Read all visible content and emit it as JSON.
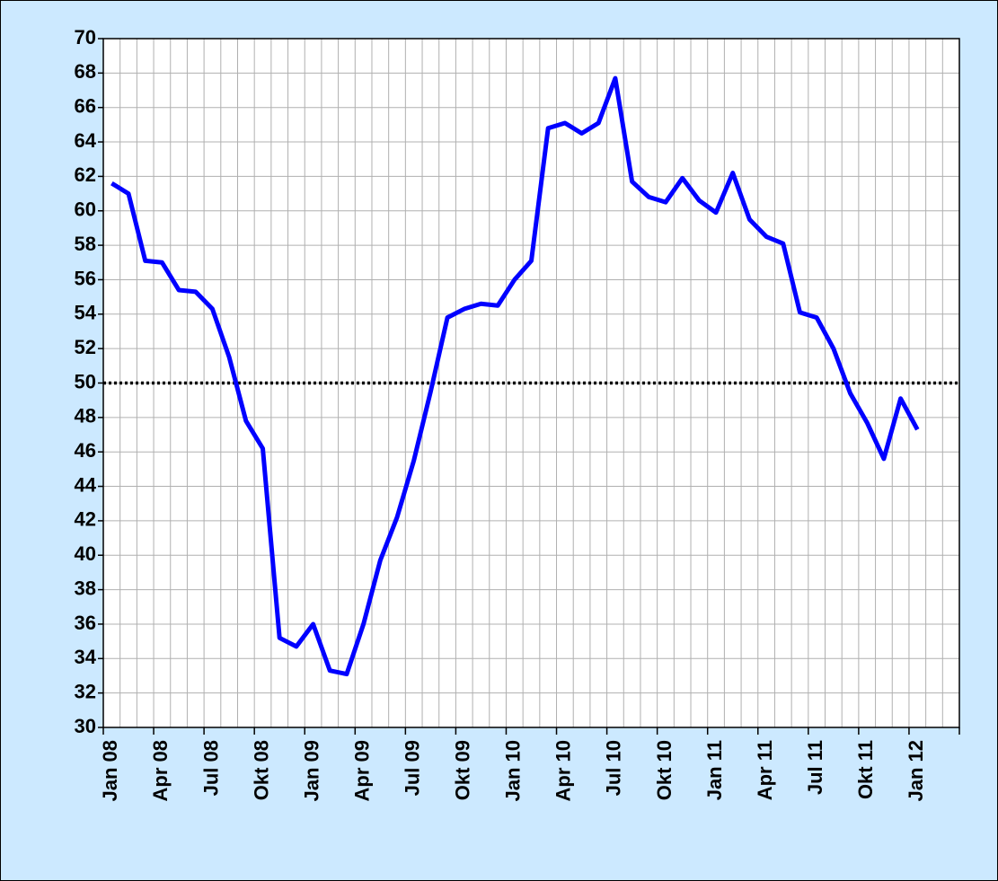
{
  "chart_data": {
    "type": "line",
    "categories": [
      "Jan 08",
      null,
      null,
      "Apr 08",
      null,
      null,
      "Jul 08",
      null,
      null,
      "Okt 08",
      null,
      null,
      "Jan 09",
      null,
      null,
      "Apr 09",
      null,
      null,
      "Jul 09",
      null,
      null,
      "Okt 09",
      null,
      null,
      "Jan 10",
      null,
      null,
      "Apr 10",
      null,
      null,
      "Jul 10",
      null,
      null,
      "Okt 10",
      null,
      null,
      "Jan 11",
      null,
      null,
      "Apr 11",
      null,
      null,
      "Jul 11",
      null,
      null,
      "Okt 11",
      null,
      null,
      "Jan 12",
      null,
      null
    ],
    "series": [
      {
        "color": "#0000ff",
        "values": [
          61.6,
          61.0,
          57.1,
          57.0,
          55.4,
          55.3,
          54.3,
          51.5,
          47.8,
          46.2,
          35.2,
          34.7,
          36.0,
          33.3,
          33.1,
          36.0,
          39.7,
          42.2,
          45.5,
          49.5,
          53.8,
          54.3,
          54.6,
          54.5,
          56.0,
          57.1,
          64.8,
          65.1,
          64.5,
          65.1,
          67.7,
          61.7,
          60.8,
          60.5,
          61.9,
          60.6,
          59.9,
          62.2,
          59.5,
          58.5,
          58.1,
          54.1,
          53.8,
          52.0,
          49.4,
          47.7,
          45.6,
          49.1,
          47.3,
          null,
          null
        ]
      }
    ],
    "ylim": [
      30,
      70
    ],
    "yticks": [
      30,
      32,
      34,
      36,
      38,
      40,
      42,
      44,
      46,
      48,
      50,
      52,
      54,
      56,
      58,
      60,
      62,
      64,
      66,
      68,
      70
    ],
    "reference_line": 50,
    "grid": true
  }
}
